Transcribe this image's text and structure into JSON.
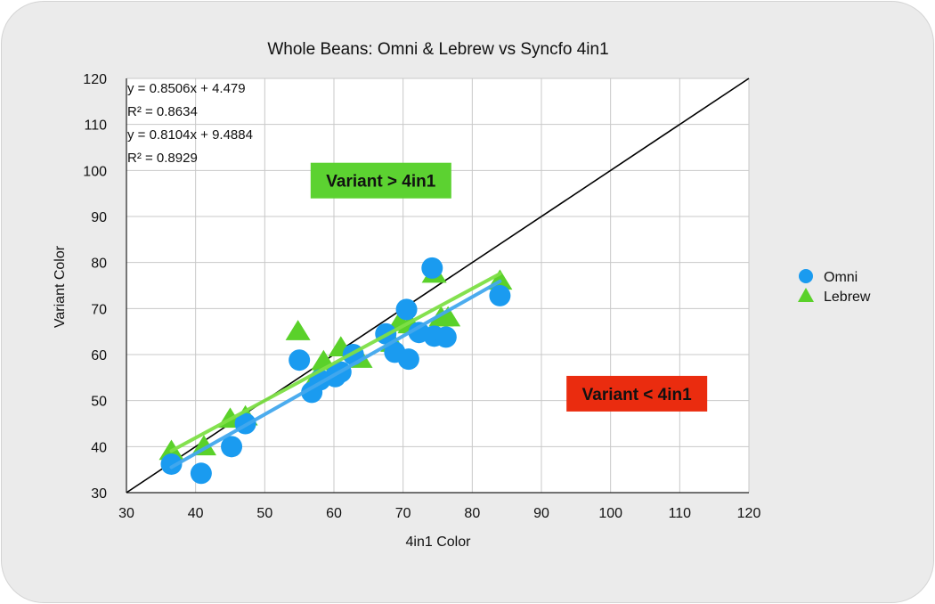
{
  "chart_data": {
    "type": "scatter",
    "title": "Whole Beans: Omni & Lebrew vs Syncfo 4in1",
    "xlabel": "4in1 Color",
    "ylabel": "Variant Color",
    "xlim": [
      30,
      120
    ],
    "ylim": [
      30,
      120
    ],
    "xticks": [
      30,
      40,
      50,
      60,
      70,
      80,
      90,
      100,
      110,
      120
    ],
    "yticks": [
      30,
      40,
      50,
      60,
      70,
      80,
      90,
      100,
      110,
      120
    ],
    "grid": true,
    "legend_position": "right",
    "series": [
      {
        "name": "Omni",
        "marker": "circle",
        "color": "#1a9bf0",
        "trend_color": "#43a8ee",
        "trend_range": [
          36.5,
          84
        ],
        "slope": 0.8506,
        "intercept": 4.479,
        "points": [
          [
            36.5,
            36.2
          ],
          [
            40.8,
            34.2
          ],
          [
            45.2,
            40.0
          ],
          [
            47.2,
            45.0
          ],
          [
            55.0,
            58.8
          ],
          [
            56.8,
            51.8
          ],
          [
            58.0,
            54.5
          ],
          [
            60.2,
            55.2
          ],
          [
            61.0,
            56.2
          ],
          [
            62.8,
            60.0
          ],
          [
            67.5,
            64.5
          ],
          [
            68.8,
            60.5
          ],
          [
            70.5,
            69.8
          ],
          [
            70.8,
            59.0
          ],
          [
            72.3,
            64.8
          ],
          [
            74.2,
            78.8
          ],
          [
            74.5,
            64.0
          ],
          [
            76.2,
            63.8
          ],
          [
            84.0,
            72.8
          ]
        ]
      },
      {
        "name": "Lebrew",
        "marker": "triangle",
        "color": "#5ad12a",
        "trend_color": "#7ee046",
        "trend_range": [
          36.5,
          84
        ],
        "slope": 0.8104,
        "intercept": 9.4884,
        "points": [
          [
            36.5,
            39.0
          ],
          [
            41.2,
            40.0
          ],
          [
            45.0,
            46.0
          ],
          [
            47.2,
            46.5
          ],
          [
            54.8,
            65.0
          ],
          [
            57.5,
            55.0
          ],
          [
            58.5,
            58.5
          ],
          [
            61.0,
            61.5
          ],
          [
            63.8,
            59.0
          ],
          [
            68.5,
            62.5
          ],
          [
            69.5,
            67.0
          ],
          [
            71.0,
            66.5
          ],
          [
            74.5,
            77.5
          ],
          [
            75.5,
            68.0
          ],
          [
            76.5,
            68.0
          ],
          [
            84.0,
            76.0
          ]
        ]
      }
    ],
    "reference_line": {
      "type": "y=x",
      "color": "#000000"
    },
    "equations": [
      "y = 0.8506x + 4.479",
      "R² = 0.8634",
      "y = 0.8104x + 9.4884",
      "R² = 0.8929"
    ],
    "annotations": [
      {
        "text": "Variant > 4in1",
        "color": "#5cd231",
        "x": 66.8,
        "y": 97.8
      },
      {
        "text": "Variant < 4in1",
        "color": "#ea2c0f",
        "x": 103.8,
        "y": 51.5
      }
    ]
  }
}
